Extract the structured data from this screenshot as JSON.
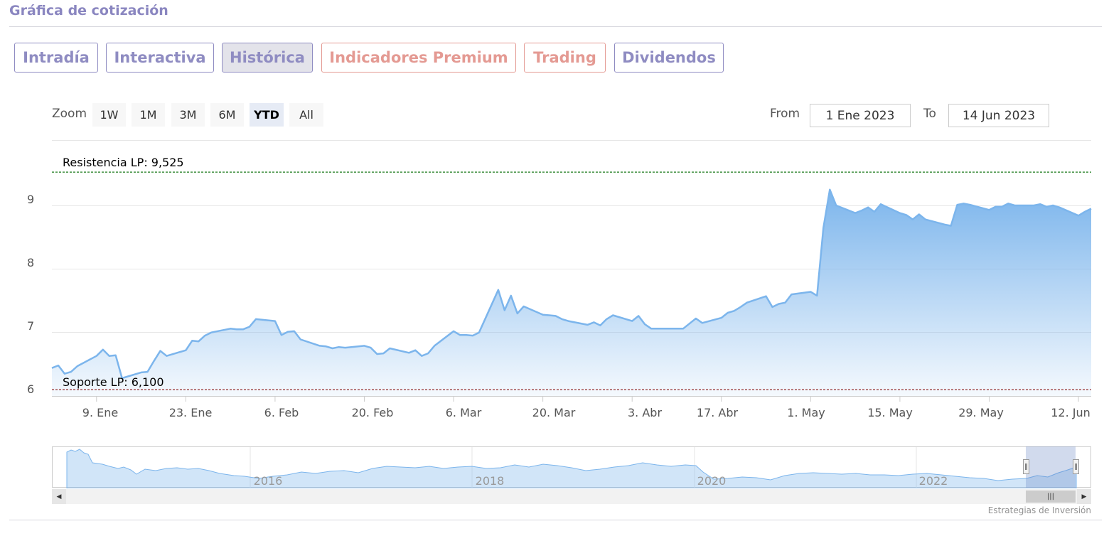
{
  "section_title": "Gráfica de cotización",
  "tabs": [
    {
      "label": "Intradía",
      "active": false,
      "premium": false
    },
    {
      "label": "Interactiva",
      "active": false,
      "premium": false
    },
    {
      "label": "Histórica",
      "active": true,
      "premium": false
    },
    {
      "label": "Indicadores Premium",
      "active": false,
      "premium": true
    },
    {
      "label": "Trading",
      "active": false,
      "premium": true
    },
    {
      "label": "Dividendos",
      "active": false,
      "premium": false
    }
  ],
  "zoom": {
    "label": "Zoom",
    "buttons": [
      "1W",
      "1M",
      "3M",
      "6M",
      "YTD",
      "All"
    ],
    "selected": "YTD"
  },
  "range": {
    "from_label": "From",
    "from_value": "1 Ene 2023",
    "to_label": "To",
    "to_value": "14 Jun 2023"
  },
  "chart_data": {
    "type": "area",
    "title": "",
    "xlabel": "",
    "ylabel": "",
    "ylim": [
      6,
      9.6
    ],
    "y_ticks": [
      6,
      7,
      8,
      9
    ],
    "y_tick_labels": [
      "6",
      "7",
      "8",
      "9"
    ],
    "x_range": [
      "2023-01-02",
      "2023-06-14"
    ],
    "x_ticks": [
      {
        "date": "2023-01-09",
        "label": "9. Ene"
      },
      {
        "date": "2023-01-23",
        "label": "23. Ene"
      },
      {
        "date": "2023-02-06",
        "label": "6. Feb"
      },
      {
        "date": "2023-02-20",
        "label": "20. Feb"
      },
      {
        "date": "2023-03-06",
        "label": "6. Mar"
      },
      {
        "date": "2023-03-20",
        "label": "20. Mar"
      },
      {
        "date": "2023-04-03",
        "label": "3. Abr"
      },
      {
        "date": "2023-04-17",
        "label": "17. Abr"
      },
      {
        "date": "2023-05-01",
        "label": "1. May"
      },
      {
        "date": "2023-05-15",
        "label": "15. May"
      },
      {
        "date": "2023-05-29",
        "label": "29. May"
      },
      {
        "date": "2023-06-12",
        "label": "12. Jun"
      }
    ],
    "series": [
      {
        "color": "#7cb5ec",
        "points": [
          [
            "2023-01-02",
            6.44
          ],
          [
            "2023-01-03",
            6.48
          ],
          [
            "2023-01-04",
            6.35
          ],
          [
            "2023-01-05",
            6.38
          ],
          [
            "2023-01-06",
            6.47
          ],
          [
            "2023-01-09",
            6.63
          ],
          [
            "2023-01-10",
            6.73
          ],
          [
            "2023-01-11",
            6.63
          ],
          [
            "2023-01-12",
            6.64
          ],
          [
            "2023-01-13",
            6.28
          ],
          [
            "2023-01-16",
            6.37
          ],
          [
            "2023-01-17",
            6.38
          ],
          [
            "2023-01-18",
            6.55
          ],
          [
            "2023-01-19",
            6.71
          ],
          [
            "2023-01-20",
            6.63
          ],
          [
            "2023-01-23",
            6.72
          ],
          [
            "2023-01-24",
            6.87
          ],
          [
            "2023-01-25",
            6.86
          ],
          [
            "2023-01-26",
            6.95
          ],
          [
            "2023-01-27",
            7.0
          ],
          [
            "2023-01-30",
            7.06
          ],
          [
            "2023-01-31",
            7.05
          ],
          [
            "2023-02-01",
            7.05
          ],
          [
            "2023-02-02",
            7.09
          ],
          [
            "2023-02-03",
            7.21
          ],
          [
            "2023-02-06",
            7.18
          ],
          [
            "2023-02-07",
            6.96
          ],
          [
            "2023-02-08",
            7.01
          ],
          [
            "2023-02-09",
            7.02
          ],
          [
            "2023-02-10",
            6.89
          ],
          [
            "2023-02-13",
            6.79
          ],
          [
            "2023-02-14",
            6.78
          ],
          [
            "2023-02-15",
            6.75
          ],
          [
            "2023-02-16",
            6.77
          ],
          [
            "2023-02-17",
            6.76
          ],
          [
            "2023-02-20",
            6.79
          ],
          [
            "2023-02-21",
            6.76
          ],
          [
            "2023-02-22",
            6.66
          ],
          [
            "2023-02-23",
            6.67
          ],
          [
            "2023-02-24",
            6.75
          ],
          [
            "2023-02-27",
            6.68
          ],
          [
            "2023-02-28",
            6.72
          ],
          [
            "2023-03-01",
            6.63
          ],
          [
            "2023-03-02",
            6.67
          ],
          [
            "2023-03-03",
            6.79
          ],
          [
            "2023-03-06",
            7.02
          ],
          [
            "2023-03-07",
            6.96
          ],
          [
            "2023-03-08",
            6.96
          ],
          [
            "2023-03-09",
            6.95
          ],
          [
            "2023-03-10",
            7.0
          ],
          [
            "2023-03-13",
            7.67
          ],
          [
            "2023-03-14",
            7.35
          ],
          [
            "2023-03-15",
            7.58
          ],
          [
            "2023-03-16",
            7.3
          ],
          [
            "2023-03-17",
            7.41
          ],
          [
            "2023-03-20",
            7.28
          ],
          [
            "2023-03-21",
            7.27
          ],
          [
            "2023-03-22",
            7.26
          ],
          [
            "2023-03-23",
            7.21
          ],
          [
            "2023-03-24",
            7.18
          ],
          [
            "2023-03-27",
            7.12
          ],
          [
            "2023-03-28",
            7.16
          ],
          [
            "2023-03-29",
            7.11
          ],
          [
            "2023-03-30",
            7.21
          ],
          [
            "2023-03-31",
            7.27
          ],
          [
            "2023-04-03",
            7.18
          ],
          [
            "2023-04-04",
            7.26
          ],
          [
            "2023-04-05",
            7.13
          ],
          [
            "2023-04-06",
            7.06
          ],
          [
            "2023-04-10",
            7.06
          ],
          [
            "2023-04-11",
            7.06
          ],
          [
            "2023-04-12",
            7.14
          ],
          [
            "2023-04-13",
            7.22
          ],
          [
            "2023-04-14",
            7.15
          ],
          [
            "2023-04-17",
            7.23
          ],
          [
            "2023-04-18",
            7.31
          ],
          [
            "2023-04-19",
            7.34
          ],
          [
            "2023-04-20",
            7.4
          ],
          [
            "2023-04-21",
            7.47
          ],
          [
            "2023-04-24",
            7.57
          ],
          [
            "2023-04-25",
            7.4
          ],
          [
            "2023-04-26",
            7.45
          ],
          [
            "2023-04-27",
            7.47
          ],
          [
            "2023-04-28",
            7.6
          ],
          [
            "2023-05-01",
            7.64
          ],
          [
            "2023-05-02",
            7.58
          ],
          [
            "2023-05-03",
            8.65
          ],
          [
            "2023-05-04",
            9.25
          ],
          [
            "2023-05-05",
            9.0
          ],
          [
            "2023-05-08",
            8.88
          ],
          [
            "2023-05-09",
            8.92
          ],
          [
            "2023-05-10",
            8.97
          ],
          [
            "2023-05-11",
            8.9
          ],
          [
            "2023-05-12",
            9.02
          ],
          [
            "2023-05-15",
            8.88
          ],
          [
            "2023-05-16",
            8.85
          ],
          [
            "2023-05-17",
            8.78
          ],
          [
            "2023-05-18",
            8.86
          ],
          [
            "2023-05-19",
            8.78
          ],
          [
            "2023-05-22",
            8.7
          ],
          [
            "2023-05-23",
            8.68
          ],
          [
            "2023-05-24",
            9.01
          ],
          [
            "2023-05-25",
            9.03
          ],
          [
            "2023-05-26",
            9.01
          ],
          [
            "2023-05-29",
            8.93
          ],
          [
            "2023-05-30",
            8.98
          ],
          [
            "2023-05-31",
            8.98
          ],
          [
            "2023-06-01",
            9.03
          ],
          [
            "2023-06-02",
            9.0
          ],
          [
            "2023-06-05",
            9.0
          ],
          [
            "2023-06-06",
            9.02
          ],
          [
            "2023-06-07",
            8.98
          ],
          [
            "2023-06-08",
            9.0
          ],
          [
            "2023-06-09",
            8.97
          ],
          [
            "2023-06-12",
            8.84
          ],
          [
            "2023-06-13",
            8.9
          ],
          [
            "2023-06-14",
            8.95
          ]
        ]
      }
    ],
    "plot_lines": [
      {
        "label": "Resistencia LP: 9,525",
        "value": 9.525,
        "color": "#1a7a1a",
        "style": "dashed"
      },
      {
        "label": "Soporte LP: 6,100",
        "value": 6.1,
        "color": "#8b1a1a",
        "style": "dashed"
      }
    ],
    "grid": true,
    "legend": "none"
  },
  "navigator": {
    "labels": [
      "2016",
      "2018",
      "2020",
      "2022"
    ],
    "selected_range": [
      "2023-01-01",
      "2023-06-14"
    ]
  },
  "credits": "Estrategias de Inversión"
}
